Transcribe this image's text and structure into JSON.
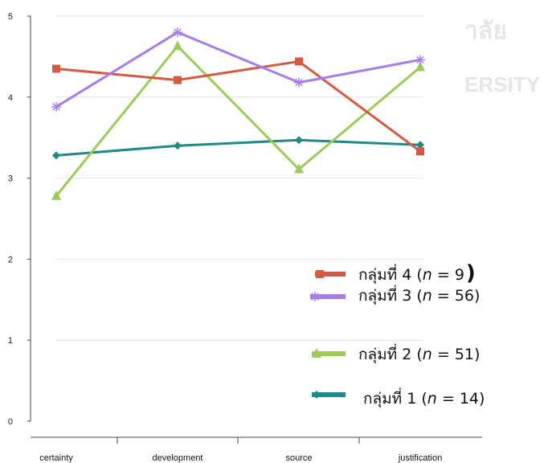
{
  "chart_data": {
    "type": "line",
    "categories": [
      "certainty",
      "development",
      "source",
      "justification"
    ],
    "ylim": [
      0,
      5
    ],
    "yticks": [
      0,
      1,
      2,
      3,
      4,
      5
    ],
    "grid": true,
    "legend_position": "bottom-right",
    "watermark": [
      "าลัย",
      "ERSITY"
    ],
    "series": [
      {
        "name": "กลุ่มที่ 4 (n = 9)",
        "color": "#d45a44",
        "marker": "square",
        "values": [
          4.35,
          4.21,
          4.44,
          3.33
        ],
        "legend_prefix": "กลุ่มที่ 4 (",
        "legend_n": "n",
        "legend_suffix": " = 9",
        "legend_close": ")"
      },
      {
        "name": "กลุ่มที่ 3 (n = 56)",
        "color": "#a67ce8",
        "marker": "asterisk",
        "values": [
          3.88,
          4.8,
          4.18,
          4.46
        ],
        "legend_prefix": "กลุ่มที่ 3 (",
        "legend_n": "n",
        "legend_suffix": " = 56)",
        "legend_close": ""
      },
      {
        "name": "กลุ่มที่ 2 (n = 51)",
        "color": "#9ccb5a",
        "marker": "triangle",
        "values": [
          2.78,
          4.63,
          3.11,
          4.37
        ],
        "legend_prefix": "กลุ่มที่ 2 (",
        "legend_n": "n",
        "legend_suffix": " = 51)",
        "legend_close": ""
      },
      {
        "name": "กลุ่มที่ 1 (n = 14)",
        "color": "#1f8a87",
        "marker": "diamond",
        "values": [
          3.28,
          3.4,
          3.47,
          3.41
        ],
        "legend_prefix": "กลุ่มที่ 1 (",
        "legend_n": "n",
        "legend_suffix": " = 14)",
        "legend_close": ""
      }
    ]
  }
}
